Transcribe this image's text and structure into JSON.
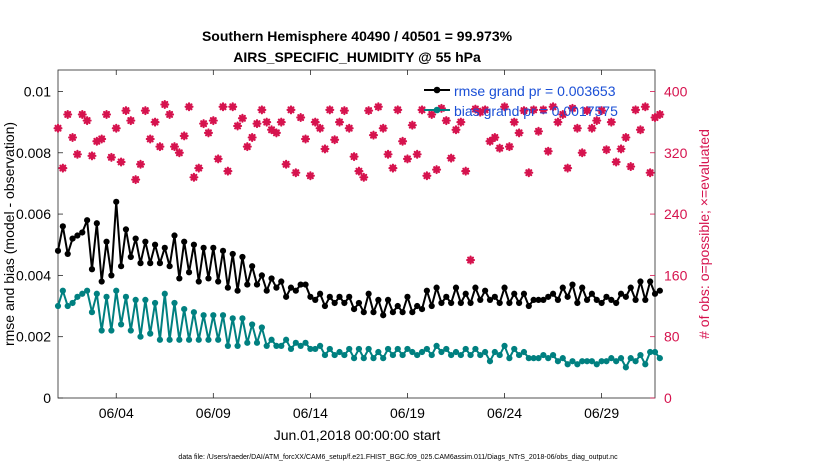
{
  "chart_data": {
    "type": "line",
    "title_line1": "Southern Hemisphere 40490 / 40501 = 99.973%",
    "title_line2": "AIRS_SPECIFIC_HUMIDITY @ 55 hPa",
    "xlabel": "Jun.01,2018 00:00:00 start",
    "ylabel": "rmse and bias (model - observation)",
    "y2label": "# of obs: o=possible; ×=evaluated",
    "xlim": [
      0.0,
      30.75
    ],
    "ylim": [
      0,
      0.0107
    ],
    "y2lim": [
      0,
      428
    ],
    "x_ticks": [
      {
        "value": 3,
        "label": "06/04"
      },
      {
        "value": 8,
        "label": "06/09"
      },
      {
        "value": 13,
        "label": "06/14"
      },
      {
        "value": 18,
        "label": "06/19"
      },
      {
        "value": 23,
        "label": "06/24"
      },
      {
        "value": 28,
        "label": "06/29"
      }
    ],
    "y_ticks": [
      {
        "value": 0,
        "label": "0"
      },
      {
        "value": 0.002,
        "label": "0.002"
      },
      {
        "value": 0.004,
        "label": "0.004"
      },
      {
        "value": 0.006,
        "label": "0.006"
      },
      {
        "value": 0.008,
        "label": "0.008"
      },
      {
        "value": 0.01,
        "label": "0.01"
      }
    ],
    "y2_ticks": [
      {
        "value": 0,
        "label": "0"
      },
      {
        "value": 80,
        "label": "80"
      },
      {
        "value": 160,
        "label": "160"
      },
      {
        "value": 240,
        "label": "240"
      },
      {
        "value": 320,
        "label": "320"
      },
      {
        "value": 400,
        "label": "400"
      }
    ],
    "x_start": 0.0,
    "x_step": 0.25,
    "series": [
      {
        "name": "rmse grand pr = 0.003653",
        "color": "#000000",
        "axis": "left",
        "values": [
          0.0048,
          0.0056,
          0.0047,
          0.0052,
          0.0053,
          0.0054,
          0.0058,
          0.0042,
          0.0057,
          0.0038,
          0.0051,
          0.004,
          0.0064,
          0.0043,
          0.0055,
          0.0046,
          0.0052,
          0.0044,
          0.0051,
          0.0044,
          0.005,
          0.0044,
          0.0049,
          0.0043,
          0.0053,
          0.0039,
          0.0051,
          0.0041,
          0.005,
          0.0038,
          0.0049,
          0.0039,
          0.0049,
          0.0038,
          0.0048,
          0.0036,
          0.0047,
          0.0035,
          0.0046,
          0.0037,
          0.0043,
          0.0037,
          0.004,
          0.0035,
          0.0039,
          0.0036,
          0.0038,
          0.0033,
          0.0036,
          0.0035,
          0.0037,
          0.0037,
          0.0033,
          0.0032,
          0.0034,
          0.003,
          0.0033,
          0.0031,
          0.0033,
          0.0031,
          0.0033,
          0.0029,
          0.0031,
          0.0028,
          0.0034,
          0.0028,
          0.0032,
          0.0027,
          0.0032,
          0.0028,
          0.003,
          0.0028,
          0.0033,
          0.0028,
          0.003,
          0.0029,
          0.0035,
          0.003,
          0.0036,
          0.0031,
          0.0033,
          0.0031,
          0.0036,
          0.0031,
          0.0034,
          0.0031,
          0.0036,
          0.0032,
          0.0035,
          0.0032,
          0.0033,
          0.0031,
          0.0036,
          0.0031,
          0.0034,
          0.0031,
          0.0034,
          0.003,
          0.0032,
          0.0032,
          0.0032,
          0.0033,
          0.0034,
          0.0032,
          0.0036,
          0.0033,
          0.0037,
          0.0031,
          0.0036,
          0.0032,
          0.0034,
          0.0032,
          0.0031,
          0.0033,
          0.0032,
          0.0031,
          0.0034,
          0.0033,
          0.0036,
          0.0032,
          0.0038,
          0.0032,
          0.0038,
          0.0034,
          0.0035
        ]
      },
      {
        "name": "bias grand pr = 0.0017575",
        "color": "#008080",
        "axis": "left",
        "values": [
          0.003,
          0.0035,
          0.003,
          0.0031,
          0.0033,
          0.0034,
          0.0035,
          0.0028,
          0.0034,
          0.0022,
          0.0033,
          0.0022,
          0.0035,
          0.0024,
          0.0033,
          0.0022,
          0.0032,
          0.002,
          0.0032,
          0.0021,
          0.0031,
          0.0019,
          0.0034,
          0.0019,
          0.0031,
          0.0019,
          0.0029,
          0.0019,
          0.0028,
          0.0019,
          0.0027,
          0.0019,
          0.0027,
          0.0019,
          0.0027,
          0.0017,
          0.0026,
          0.0017,
          0.0026,
          0.0018,
          0.0024,
          0.0018,
          0.0023,
          0.0017,
          0.0019,
          0.0017,
          0.0017,
          0.0019,
          0.0016,
          0.0018,
          0.0017,
          0.0018,
          0.0016,
          0.0016,
          0.0017,
          0.0014,
          0.0016,
          0.0014,
          0.0015,
          0.0014,
          0.0016,
          0.0013,
          0.0016,
          0.0013,
          0.0016,
          0.0013,
          0.0015,
          0.0013,
          0.0016,
          0.0014,
          0.0016,
          0.0014,
          0.0016,
          0.0015,
          0.0014,
          0.0015,
          0.0016,
          0.0014,
          0.0017,
          0.0015,
          0.0016,
          0.0014,
          0.0015,
          0.0014,
          0.0016,
          0.0014,
          0.0016,
          0.0014,
          0.0015,
          0.0012,
          0.0015,
          0.0014,
          0.0017,
          0.0013,
          0.0016,
          0.0014,
          0.0015,
          0.0013,
          0.0013,
          0.0013,
          0.0014,
          0.0013,
          0.0014,
          0.0012,
          0.0013,
          0.0011,
          0.0012,
          0.0011,
          0.0012,
          0.0012,
          0.0012,
          0.0011,
          0.0012,
          0.0012,
          0.0013,
          0.0012,
          0.0013,
          0.001,
          0.0013,
          0.0012,
          0.0014,
          0.0011,
          0.0015,
          0.0015,
          0.0013
        ]
      },
      {
        "name": "# of obs evaluated",
        "color": "#d6134e",
        "axis": "right",
        "values": [
          352,
          300,
          370,
          340,
          318,
          370,
          362,
          316,
          335,
          338,
          370,
          314,
          352,
          308,
          375,
          362,
          285,
          305,
          375,
          338,
          360,
          328,
          383,
          370,
          328,
          320,
          342,
          380,
          288,
          300,
          358,
          346,
          362,
          312,
          380,
          296,
          380,
          355,
          365,
          328,
          340,
          358,
          376,
          360,
          350,
          346,
          360,
          305,
          376,
          294,
          366,
          338,
          290,
          360,
          352,
          325,
          376,
          337,
          360,
          375,
          352,
          315,
          296,
          288,
          375,
          343,
          380,
          352,
          318,
          300,
          376,
          335,
          312,
          356,
          318,
          376,
          290,
          370,
          298,
          378,
          362,
          313,
          350,
          360,
          296,
          180,
          377,
          373,
          376,
          335,
          340,
          326,
          380,
          328,
          360,
          346,
          375,
          294,
          376,
          348,
          376,
          322,
          380,
          360,
          370,
          300,
          378,
          352,
          320,
          375,
          352,
          362,
          375,
          324,
          360,
          308,
          325,
          340,
          302,
          376,
          350,
          380,
          294,
          366,
          370
        ]
      }
    ],
    "legend": [
      {
        "label": "rmse grand pr = 0.003653",
        "color": "#000000"
      },
      {
        "label": "bias grand pr = 0.0017575",
        "color": "#008080"
      }
    ],
    "legend_position": "top-right",
    "grid": false
  },
  "footer": "data file: /Users/raeder/DAI/ATM_forcXX/CAM6_setup/f.e21.FHIST_BGC.f09_025.CAM6assim.011/Diags_NTrS_2018-06/obs_diag_output.nc"
}
